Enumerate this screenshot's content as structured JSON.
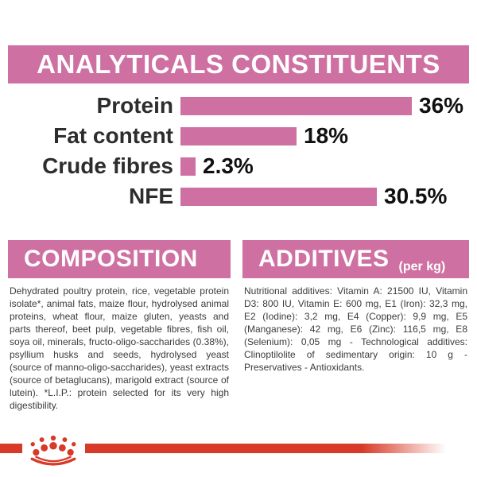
{
  "colors": {
    "pink": "#cf70a2",
    "red": "#d73a28",
    "label_text": "#2d2d2d",
    "body_text": "#3b3b3b"
  },
  "analyticals": {
    "title": "ANALYTICALS CONSTITUENTS"
  },
  "chart_data": {
    "type": "bar",
    "orientation": "horizontal",
    "title": "ANALYTICALS CONSTITUENTS",
    "categories": [
      "Protein",
      "Fat content",
      "Crude fibres",
      "NFE"
    ],
    "values": [
      36,
      18,
      2.3,
      30.5
    ],
    "value_labels": [
      "36%",
      "18%",
      "2.3%",
      "30.5%"
    ],
    "unit": "%",
    "xlim": [
      0,
      36
    ],
    "grid": false,
    "bar_color": "#cf70a2"
  },
  "composition": {
    "title": "COMPOSITION",
    "body": "Dehydrated poultry protein, rice, vegetable protein isolate*, animal fats, maize flour, hydrolysed animal proteins, wheat flour, maize gluten, yeasts and parts thereof, beet pulp, vegetable fibres, fish oil, soya oil, minerals, fructo-oligo-saccharides (0.38%), psyllium husks and seeds, hydrolysed yeast (source of manno-oligo-saccharides), yeast extracts (source of betaglucans), marigold extract (source of lutein). *L.I.P.: protein selected for its very high digestibility."
  },
  "additives": {
    "title": "ADDITIVES",
    "subtitle": "(per kg)",
    "body": "Nutritional additives: Vitamin A: 21500 IU, Vitamin D3: 800 IU, Vitamin E: 600 mg, E1 (Iron): 32,3 mg, E2 (Iodine): 3,2 mg, E4 (Copper): 9,9 mg, E5 (Manganese): 42 mg, E6 (Zinc): 116,5 mg, E8 (Selenium): 0,05 mg - Technological additives: Clinoptilolite of sedimentary origin: 10 g - Preservatives - Antioxidants."
  },
  "footer": {
    "logo": "royal-canin-crown"
  }
}
